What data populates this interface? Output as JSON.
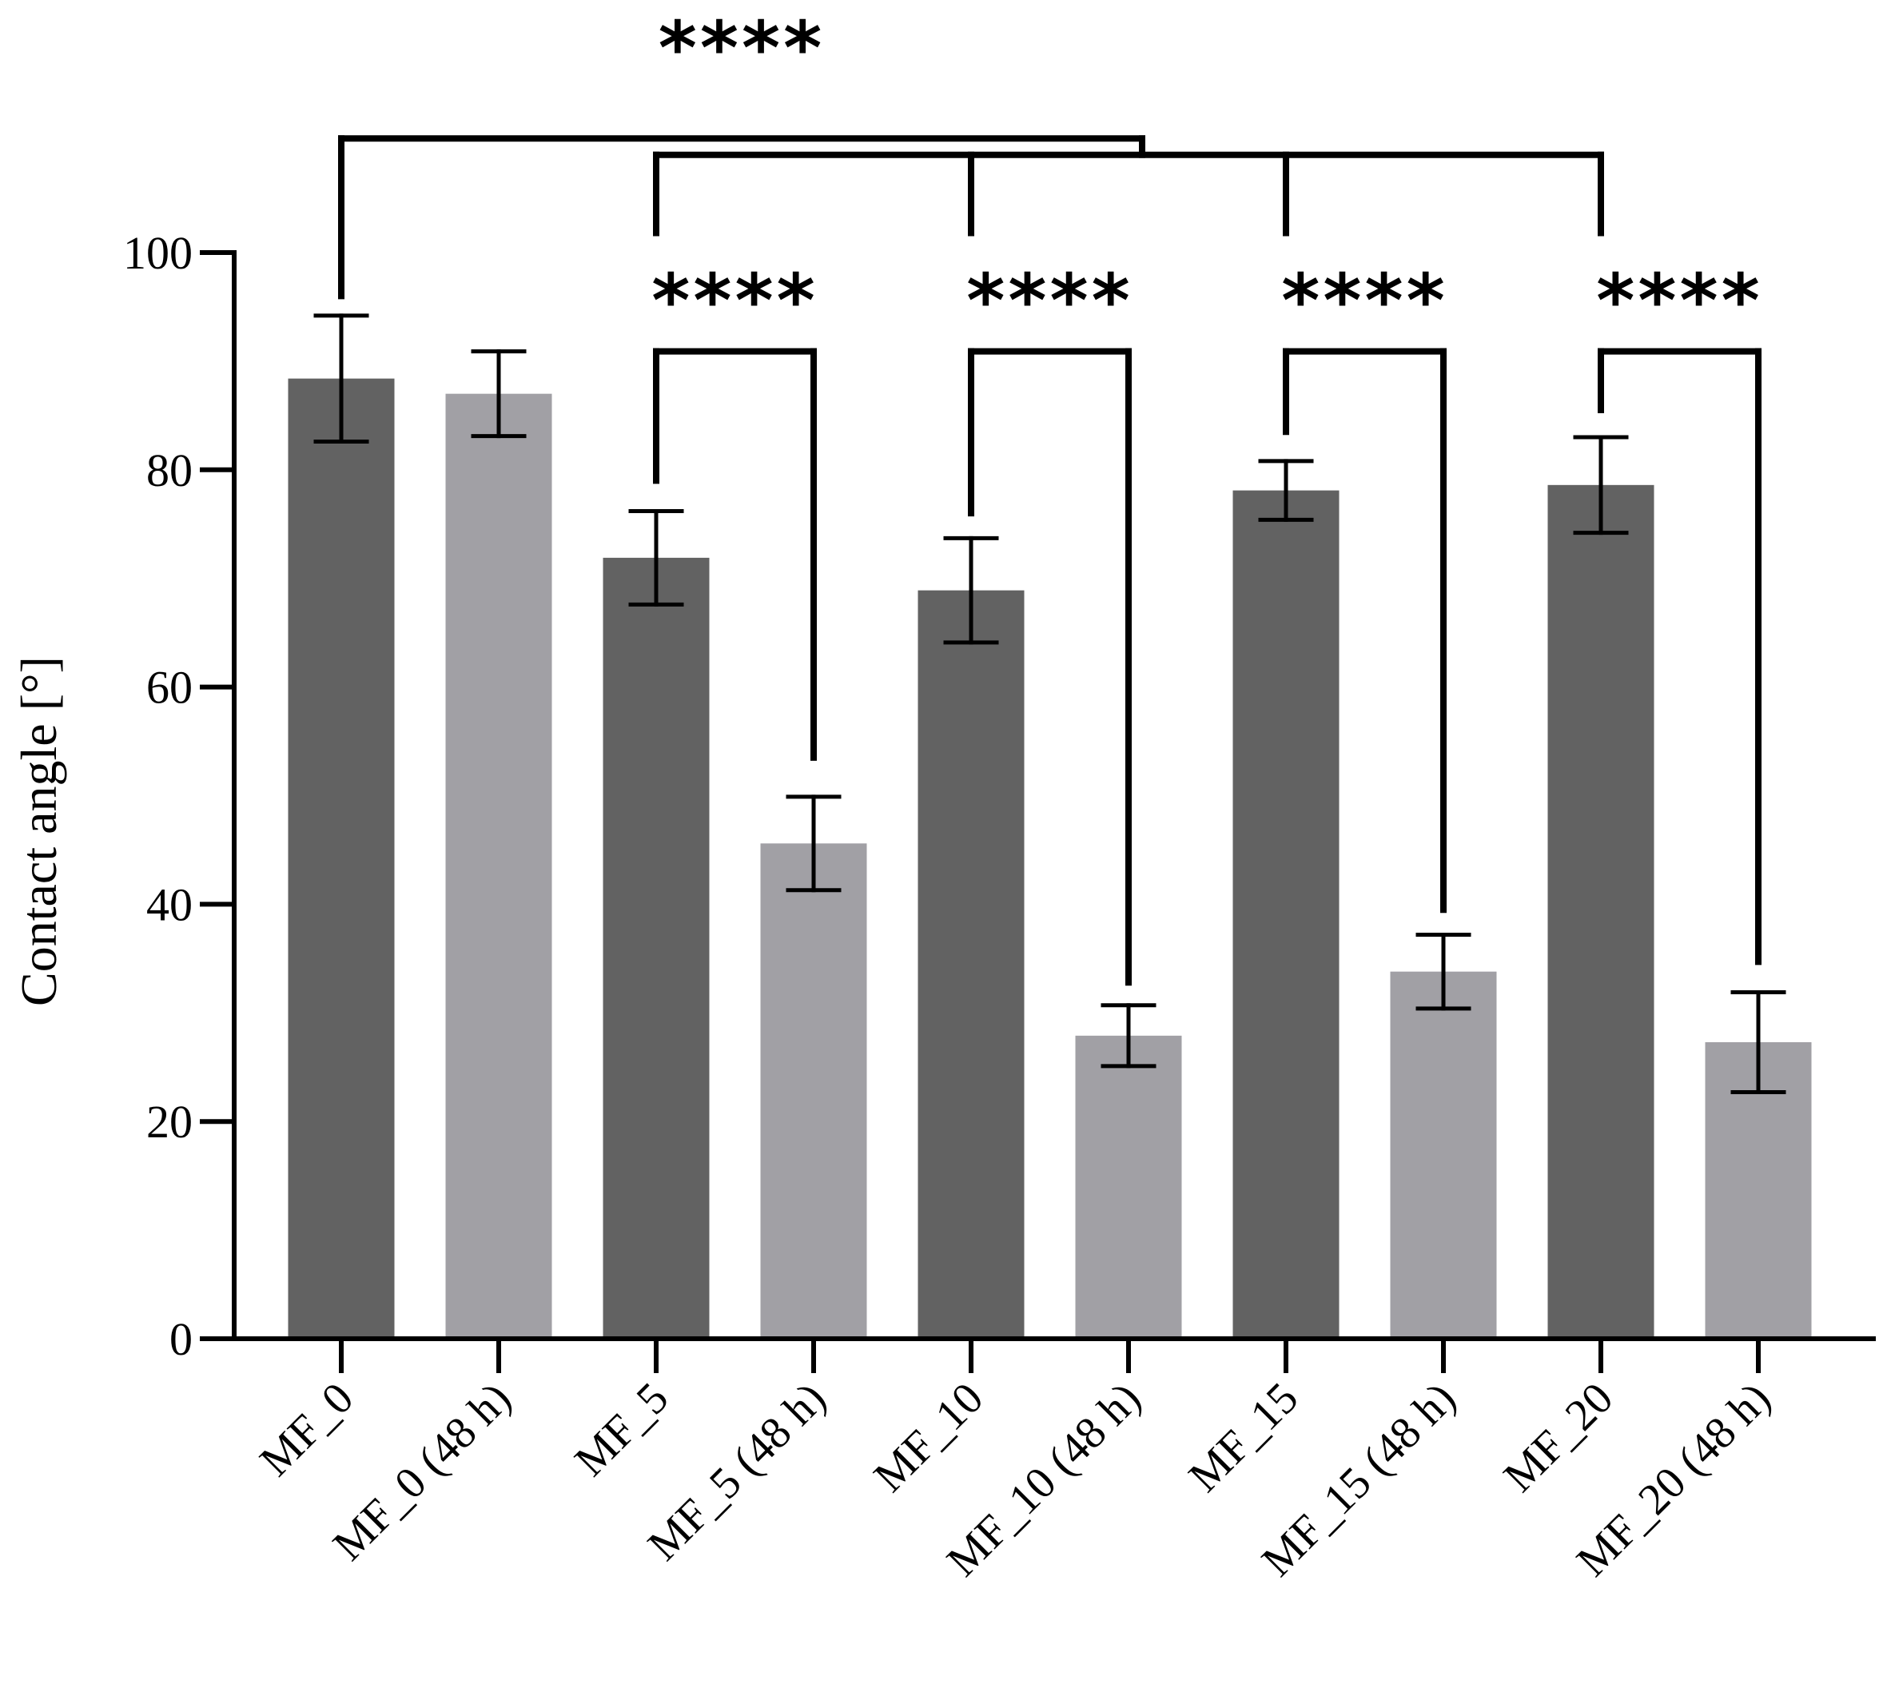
{
  "chart_data": {
    "type": "bar",
    "title": "",
    "xlabel": "",
    "ylabel": "Contact angle [°]",
    "ylim": [
      0,
      100
    ],
    "yticks": [
      0,
      20,
      40,
      60,
      80,
      100
    ],
    "ytick_labels": [
      "0",
      "20",
      "40",
      "60",
      "80",
      "100"
    ],
    "grid": false,
    "legend": "none",
    "colors": {
      "fresh": "#626262",
      "aged": "#a1a0a5",
      "axis": "#000000"
    },
    "categories": [
      "MF_0",
      "MF_0 (48 h)",
      "MF_5",
      "MF_5 (48 h)",
      "MF_10",
      "MF_10 (48 h)",
      "MF_15",
      "MF_15 (48 h)",
      "MF_20",
      "MF_20 (48 h)"
    ],
    "values": [
      88.4,
      87.0,
      71.9,
      45.6,
      68.9,
      27.9,
      78.1,
      33.8,
      78.6,
      27.3
    ],
    "error": [
      5.8,
      3.9,
      4.3,
      4.3,
      4.8,
      2.8,
      2.7,
      3.4,
      4.4,
      4.6
    ],
    "bar_group": [
      "fresh",
      "aged",
      "fresh",
      "aged",
      "fresh",
      "aged",
      "fresh",
      "aged",
      "fresh",
      "aged"
    ],
    "significance": [
      {
        "from": 0,
        "to": [
          2,
          4,
          6,
          8
        ],
        "label": "****",
        "start": 96,
        "hub": 110.5,
        "level": 109,
        "tips": 101.8
      },
      {
        "from": 2,
        "to": [
          3
        ],
        "label": "****",
        "start": 79,
        "level": 90.9,
        "end": 53.5
      },
      {
        "from": 4,
        "to": [
          5
        ],
        "label": "****",
        "start": 76,
        "level": 90.9,
        "end": 32.8
      },
      {
        "from": 6,
        "to": [
          7
        ],
        "label": "****",
        "start": 83.5,
        "level": 90.9,
        "end": 39.5
      },
      {
        "from": 8,
        "to": [
          9
        ],
        "label": "****",
        "start": 85.5,
        "level": 90.9,
        "end": 34.7
      }
    ]
  }
}
